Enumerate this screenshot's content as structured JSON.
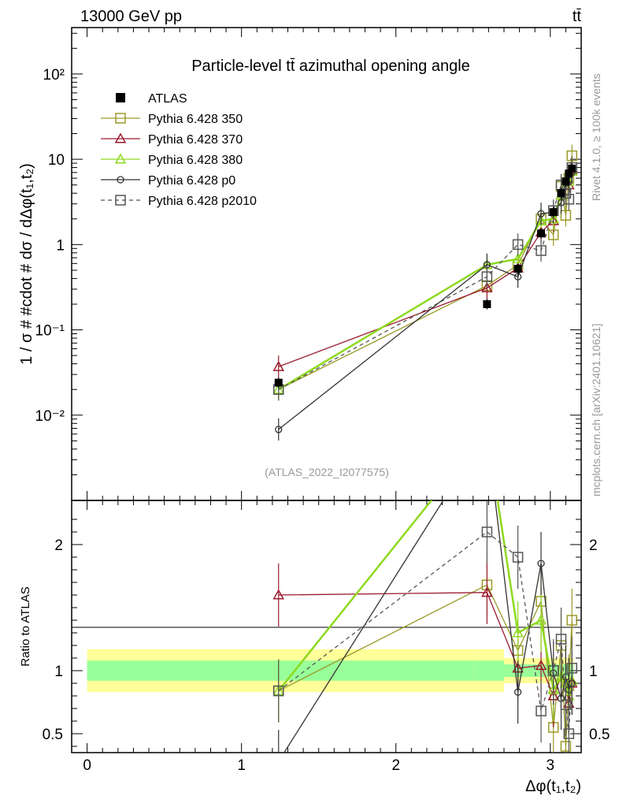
{
  "header": {
    "left": "13000 GeV pp",
    "right": "tt̄"
  },
  "side_labels": {
    "rivet": "Rivet 4.1.0, ≥ 100k events",
    "mcplots": "mcplots.cern.ch [arXiv:2401.10621]"
  },
  "chart_data": {
    "type": "line",
    "title": "Particle-level tt̄ azimuthal opening angle",
    "ylabel": "1 / σ # #cdot # dσ / dΔφ(t₁,t₂)",
    "xlabel": "Δφ(t₁,t₂)",
    "watermark": "(ATLAS_2022_I2077575)",
    "xlim": [
      -0.1,
      3.2
    ],
    "ylim_top": [
      0.001,
      350
    ],
    "yscale_top": "log",
    "ylim_ratio": [
      0.35,
      2.35
    ],
    "ratio_ylabel": "Ratio to ATLAS",
    "x_ticks": [
      "0",
      "1",
      "2",
      "3"
    ],
    "y_ticks_top": [
      "10⁻²",
      "10⁻¹",
      "1",
      "10",
      "10²"
    ],
    "y_ticks_ratio": [
      "0.5",
      "1",
      "2"
    ],
    "legend_position": "top-left",
    "x": [
      1.24,
      2.59,
      2.79,
      2.94,
      3.02,
      3.07,
      3.1,
      3.12,
      3.14
    ],
    "reference": {
      "name": "ATLAS",
      "values": [
        0.024,
        0.2,
        0.52,
        1.35,
        2.4,
        4.0,
        5.5,
        6.8,
        7.8
      ],
      "band_inner": [
        0.08,
        0.08,
        0.05,
        0.05,
        0.05,
        0.05,
        0.05,
        0.05,
        0.05
      ],
      "band_outer": [
        0.17,
        0.17,
        0.1,
        0.1,
        0.1,
        0.1,
        0.1,
        0.1,
        0.1
      ]
    },
    "series": [
      {
        "name": "Pythia 6.428 350",
        "color": "#9a9a2a",
        "marker": "square-open",
        "dash": "solid",
        "values": [
          0.02,
          0.33,
          0.58,
          2.0,
          1.3,
          4.8,
          2.2,
          6.0,
          11.0
        ],
        "ratio": [
          0.84,
          1.68,
          1.16,
          1.55,
          0.55,
          1.2,
          0.4,
          0.88,
          1.4
        ]
      },
      {
        "name": "Pythia 6.428 370",
        "color": "#9b1b2e",
        "marker": "triangle-open",
        "dash": "solid",
        "values": [
          0.037,
          0.31,
          0.53,
          1.4,
          1.9,
          3.8,
          4.9,
          5.0,
          7.5
        ],
        "ratio": [
          1.6,
          1.62,
          1.02,
          1.04,
          0.8,
          0.95,
          0.9,
          0.74,
          0.9
        ]
      },
      {
        "name": "Pythia 6.428 380",
        "color": "#8fd91f",
        "marker": "triangle-open",
        "dash": "solid",
        "values": [
          0.02,
          0.58,
          0.68,
          1.9,
          2.0,
          3.8,
          5.0,
          5.5,
          7.2
        ],
        "ratio": [
          0.84,
          2.9,
          1.3,
          1.4,
          0.85,
          0.95,
          0.9,
          0.8,
          0.92
        ]
      },
      {
        "name": "Pythia 6.428 p0",
        "color": "#333333",
        "marker": "circle-open",
        "dash": "solid",
        "values": [
          0.0068,
          0.58,
          0.42,
          2.3,
          2.4,
          3.1,
          5.2,
          5.8,
          7.0
        ],
        "ratio": [
          0.28,
          2.9,
          0.83,
          1.85,
          0.98,
          0.78,
          0.95,
          0.85,
          0.9
        ]
      },
      {
        "name": "Pythia 6.428 p2010",
        "color": "#555555",
        "marker": "square-open",
        "dash": "dashed",
        "values": [
          0.02,
          0.42,
          1.0,
          0.85,
          2.5,
          5.0,
          4.0,
          3.4,
          8.0
        ],
        "ratio": [
          0.84,
          2.1,
          1.9,
          0.68,
          1.0,
          1.25,
          0.73,
          0.5,
          1.02
        ]
      }
    ]
  }
}
